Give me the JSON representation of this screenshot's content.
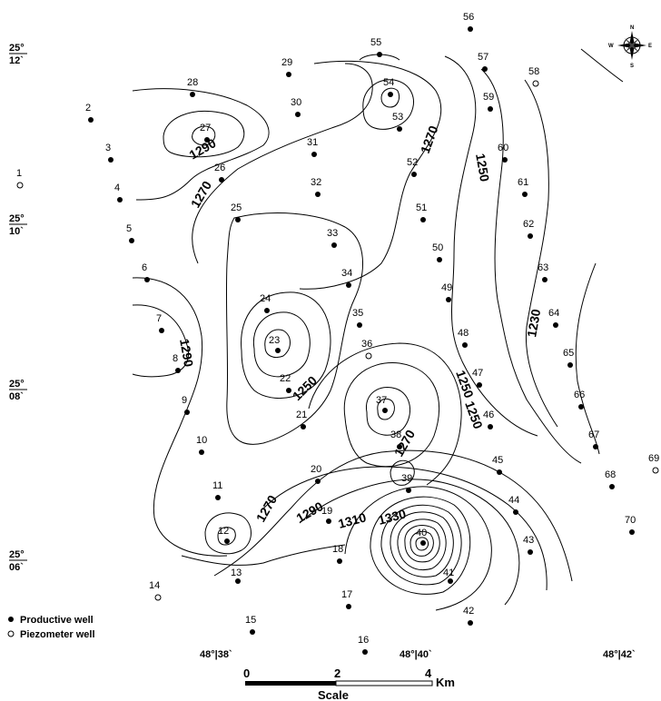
{
  "map": {
    "lat_labels": [
      {
        "deg": "25°",
        "min": "12`"
      },
      {
        "deg": "25°",
        "min": "10`"
      },
      {
        "deg": "25°",
        "min": "08`"
      },
      {
        "deg": "25°",
        "min": "06`"
      }
    ],
    "lon_labels": [
      "48°|38`",
      "48°|40`",
      "48°|42`"
    ],
    "contour_labels": [
      "1290",
      "1270",
      "1270",
      "1250",
      "1250",
      "1230",
      "1290",
      "1250",
      "1270",
      "1250",
      "1270",
      "1290",
      "1310",
      "1330"
    ],
    "wells": [
      {
        "id": "1",
        "type": "piezometer"
      },
      {
        "id": "2",
        "type": "productive"
      },
      {
        "id": "3",
        "type": "productive"
      },
      {
        "id": "4",
        "type": "productive"
      },
      {
        "id": "5",
        "type": "productive"
      },
      {
        "id": "6",
        "type": "productive"
      },
      {
        "id": "7",
        "type": "productive"
      },
      {
        "id": "8",
        "type": "productive"
      },
      {
        "id": "9",
        "type": "productive"
      },
      {
        "id": "10",
        "type": "productive"
      },
      {
        "id": "11",
        "type": "productive"
      },
      {
        "id": "12",
        "type": "productive"
      },
      {
        "id": "13",
        "type": "productive"
      },
      {
        "id": "14",
        "type": "piezometer"
      },
      {
        "id": "15",
        "type": "productive"
      },
      {
        "id": "16",
        "type": "productive"
      },
      {
        "id": "17",
        "type": "productive"
      },
      {
        "id": "18",
        "type": "productive"
      },
      {
        "id": "19",
        "type": "productive"
      },
      {
        "id": "20",
        "type": "productive"
      },
      {
        "id": "21",
        "type": "productive"
      },
      {
        "id": "22",
        "type": "productive"
      },
      {
        "id": "23",
        "type": "productive"
      },
      {
        "id": "24",
        "type": "productive"
      },
      {
        "id": "25",
        "type": "productive"
      },
      {
        "id": "26",
        "type": "productive"
      },
      {
        "id": "27",
        "type": "productive"
      },
      {
        "id": "28",
        "type": "productive"
      },
      {
        "id": "29",
        "type": "productive"
      },
      {
        "id": "30",
        "type": "productive"
      },
      {
        "id": "31",
        "type": "productive"
      },
      {
        "id": "32",
        "type": "productive"
      },
      {
        "id": "33",
        "type": "productive"
      },
      {
        "id": "34",
        "type": "productive"
      },
      {
        "id": "35",
        "type": "productive"
      },
      {
        "id": "36",
        "type": "piezometer"
      },
      {
        "id": "37",
        "type": "productive"
      },
      {
        "id": "38",
        "type": "productive"
      },
      {
        "id": "39",
        "type": "productive"
      },
      {
        "id": "40",
        "type": "productive"
      },
      {
        "id": "41",
        "type": "productive"
      },
      {
        "id": "42",
        "type": "productive"
      },
      {
        "id": "43",
        "type": "productive"
      },
      {
        "id": "44",
        "type": "productive"
      },
      {
        "id": "45",
        "type": "productive"
      },
      {
        "id": "46",
        "type": "productive"
      },
      {
        "id": "47",
        "type": "productive"
      },
      {
        "id": "48",
        "type": "productive"
      },
      {
        "id": "49",
        "type": "productive"
      },
      {
        "id": "50",
        "type": "productive"
      },
      {
        "id": "51",
        "type": "productive"
      },
      {
        "id": "52",
        "type": "productive"
      },
      {
        "id": "53",
        "type": "productive"
      },
      {
        "id": "54",
        "type": "productive"
      },
      {
        "id": "55",
        "type": "productive"
      },
      {
        "id": "56",
        "type": "productive"
      },
      {
        "id": "57",
        "type": "productive"
      },
      {
        "id": "58",
        "type": "piezometer"
      },
      {
        "id": "59",
        "type": "productive"
      },
      {
        "id": "60",
        "type": "productive"
      },
      {
        "id": "61",
        "type": "productive"
      },
      {
        "id": "62",
        "type": "productive"
      },
      {
        "id": "63",
        "type": "productive"
      },
      {
        "id": "64",
        "type": "productive"
      },
      {
        "id": "65",
        "type": "productive"
      },
      {
        "id": "66",
        "type": "productive"
      },
      {
        "id": "67",
        "type": "productive"
      },
      {
        "id": "68",
        "type": "productive"
      },
      {
        "id": "69",
        "type": "piezometer"
      },
      {
        "id": "70",
        "type": "productive"
      }
    ],
    "legend": {
      "productive": "Productive well",
      "piezometer": "Piezometer well"
    },
    "scale": {
      "ticks": [
        "0",
        "2",
        "4"
      ],
      "unit": "Km",
      "title": "Scale"
    },
    "compass": {
      "n": "N",
      "s": "S",
      "e": "E",
      "w": "W"
    }
  }
}
